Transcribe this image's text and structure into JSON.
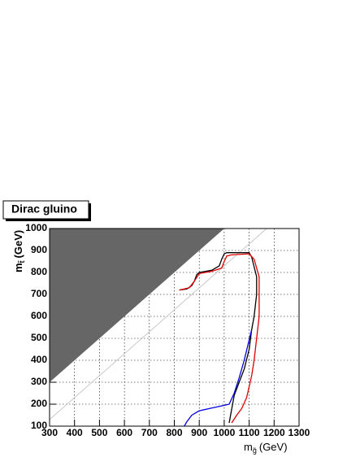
{
  "chart_data": {
    "type": "line",
    "title": "Dirac gluino",
    "x_label": {
      "main": "m",
      "sub": "g̃",
      "unit": "(GeV)"
    },
    "y_label": {
      "main": "m",
      "sub": "t̃",
      "unit": "(GeV)"
    },
    "xlim": [
      300,
      1300
    ],
    "ylim": [
      100,
      1000
    ],
    "xticks": [
      300,
      400,
      500,
      600,
      700,
      800,
      900,
      1000,
      1100,
      1200,
      1300
    ],
    "yticks": [
      100,
      200,
      300,
      400,
      500,
      600,
      700,
      800,
      900,
      1000
    ],
    "grid": true,
    "regions": [
      {
        "color": "#666666",
        "x": [
          300,
          1000,
          300
        ],
        "values": [
          300,
          1000,
          1000
        ]
      }
    ],
    "reference_lines": [
      {
        "color": "#c8c8c8",
        "x": [
          300,
          1170
        ],
        "values": [
          130,
          1000
        ]
      }
    ],
    "series": [
      {
        "color": "#000000",
        "x": [
          820,
          850,
          870,
          880,
          890,
          900,
          950,
          980,
          990,
          1000,
          1010,
          1050,
          1100,
          1110,
          1130,
          1130,
          1120,
          1110,
          1100,
          1080,
          1060,
          1040,
          1020
        ],
        "values": [
          720,
          725,
          740,
          760,
          790,
          800,
          810,
          830,
          860,
          885,
          890,
          890,
          890,
          870,
          780,
          700,
          600,
          540,
          450,
          360,
          300,
          240,
          115
        ]
      },
      {
        "color": "#e00000",
        "x": [
          820,
          860,
          880,
          900,
          950,
          990,
          1000,
          1010,
          1030,
          1100,
          1120,
          1140,
          1140,
          1130,
          1120,
          1110,
          1090,
          1070,
          1050,
          1030
        ],
        "values": [
          720,
          730,
          760,
          795,
          805,
          820,
          850,
          875,
          880,
          885,
          860,
          780,
          600,
          500,
          400,
          330,
          230,
          180,
          150,
          115
        ]
      },
      {
        "color": "#0000e0",
        "x": [
          1110,
          1080,
          1060,
          1040,
          1020,
          980,
          940,
          900,
          870,
          850,
          840
        ],
        "values": [
          540,
          400,
          320,
          250,
          200,
          190,
          180,
          170,
          150,
          120,
          100
        ]
      }
    ]
  }
}
